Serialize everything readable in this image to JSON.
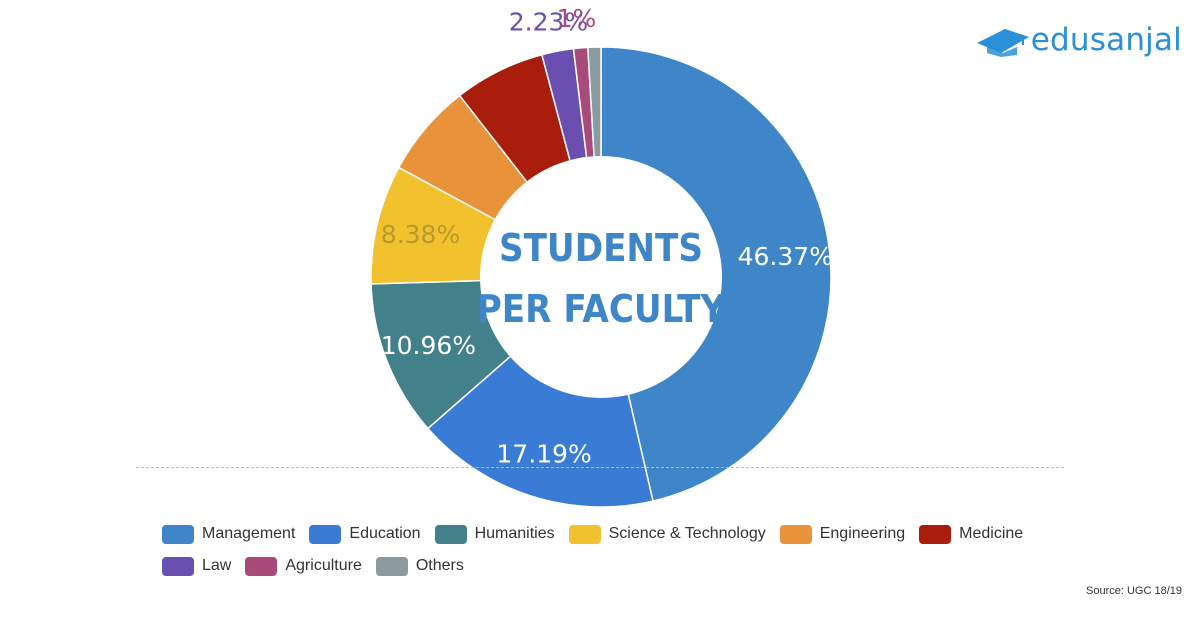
{
  "brand": {
    "name": "edusanjal",
    "icon": "graduation-cap-icon",
    "color": "#2a90d8"
  },
  "source": "Source: UGC 18/19",
  "chart_data": {
    "type": "pie",
    "donut": true,
    "title": "",
    "center_label": [
      "STUDENTS",
      "PER FACULTY"
    ],
    "legend_position": "bottom",
    "slices": [
      {
        "name": "Management",
        "value": 46.37,
        "label": "46.37%",
        "color": "#3e86c8",
        "label_color": "#ffffff"
      },
      {
        "name": "Education",
        "value": 17.19,
        "label": "17.19%",
        "color": "#3a7bd5",
        "label_color": "#ffffff"
      },
      {
        "name": "Humanities",
        "value": 10.96,
        "label": "10.96%",
        "color": "#42808a",
        "label_color": "#ffffff"
      },
      {
        "name": "Science & Technology",
        "value": 8.38,
        "label": "8.38%",
        "color": "#f2c12e",
        "label_color": "#b89a2b"
      },
      {
        "name": "Engineering",
        "value": 6.57,
        "label": "6.57%",
        "color": "#e8923a",
        "label_color": "#e8923a"
      },
      {
        "name": "Medicine",
        "value": 6.39,
        "label": "6.39%",
        "color": "#a81d0c",
        "label_color": "#a81d0c"
      },
      {
        "name": "Law",
        "value": 2.23,
        "label": "2.23%",
        "color": "#6b4fb0",
        "label_color": "#6b4fb0"
      },
      {
        "name": "Agriculture",
        "value": 1.0,
        "label": "1%",
        "color": "#a84a7a",
        "label_color": "#a84a7a"
      },
      {
        "name": "Others",
        "value": 0.91,
        "label": "",
        "color": "#8a9a9e",
        "label_color": "#8a9a9e"
      }
    ]
  }
}
